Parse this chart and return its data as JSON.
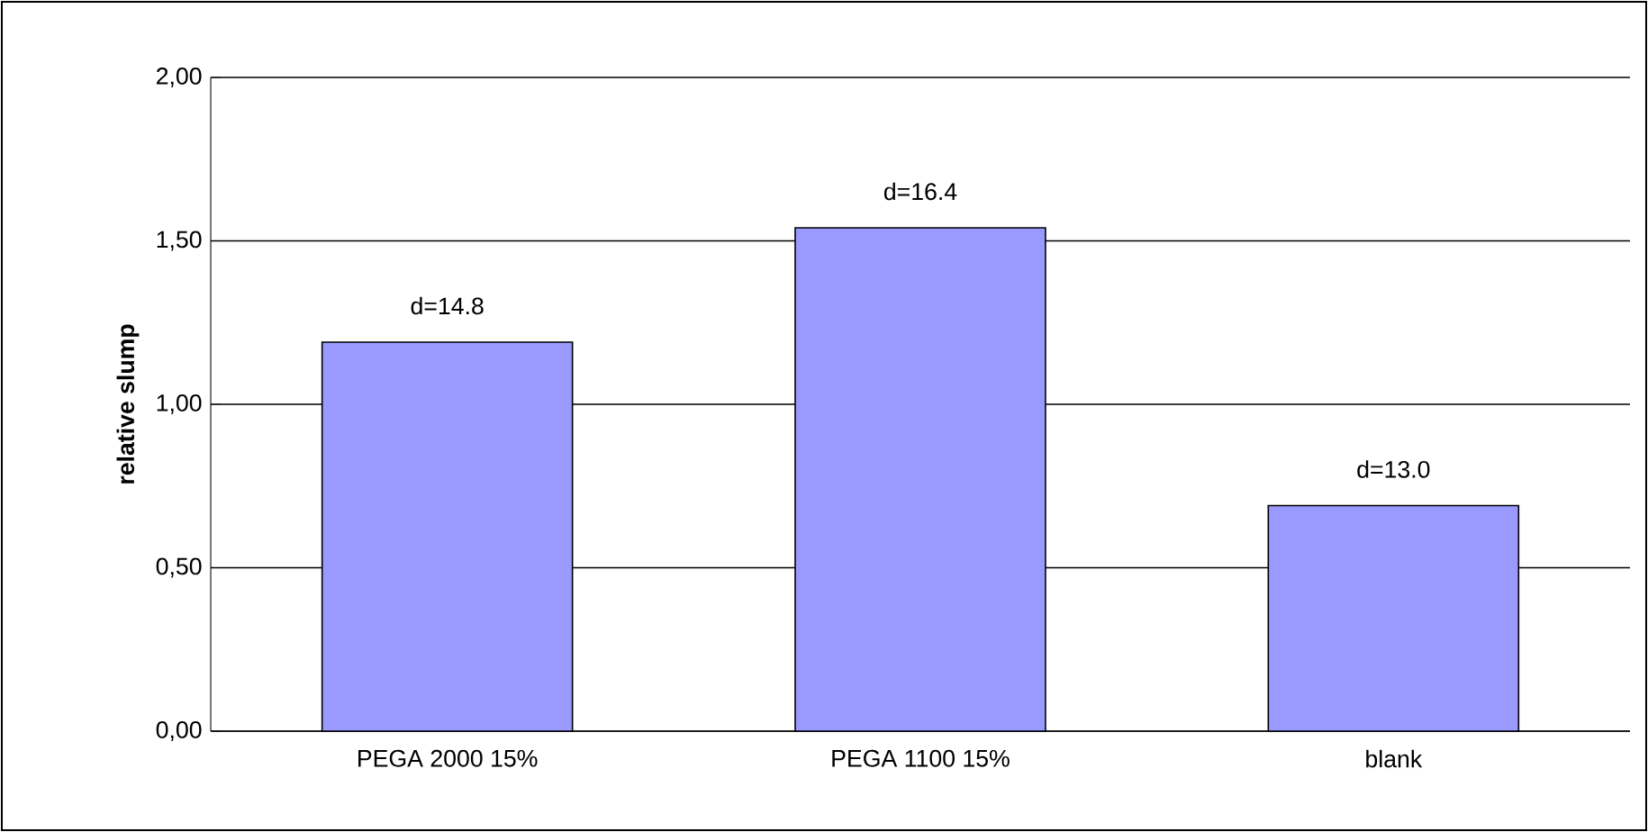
{
  "chart_data": {
    "type": "bar",
    "ylabel": "relative slump",
    "categories": [
      "PEGA 2000 15%",
      "PEGA 1100 15%",
      "blank"
    ],
    "values": [
      1.19,
      1.54,
      0.69
    ],
    "annotations": [
      {
        "text": "d=14.8",
        "x": "PEGA 2000 15%",
        "y": 1.19
      },
      {
        "text": "d=16.4",
        "x": "PEGA 1100 15%",
        "y": 1.54
      },
      {
        "text": "d=13.0",
        "x": "blank",
        "y": 0.69
      }
    ],
    "color": "#9999ff",
    "ylim": [
      0,
      2
    ],
    "yticks": [
      {
        "value": 0,
        "label": "0,00"
      },
      {
        "value": 0.5,
        "label": "0,50"
      },
      {
        "value": 1,
        "label": "1,00"
      },
      {
        "value": 1.5,
        "label": "1,50"
      },
      {
        "value": 2,
        "label": "2,00"
      }
    ],
    "grid": "y"
  }
}
